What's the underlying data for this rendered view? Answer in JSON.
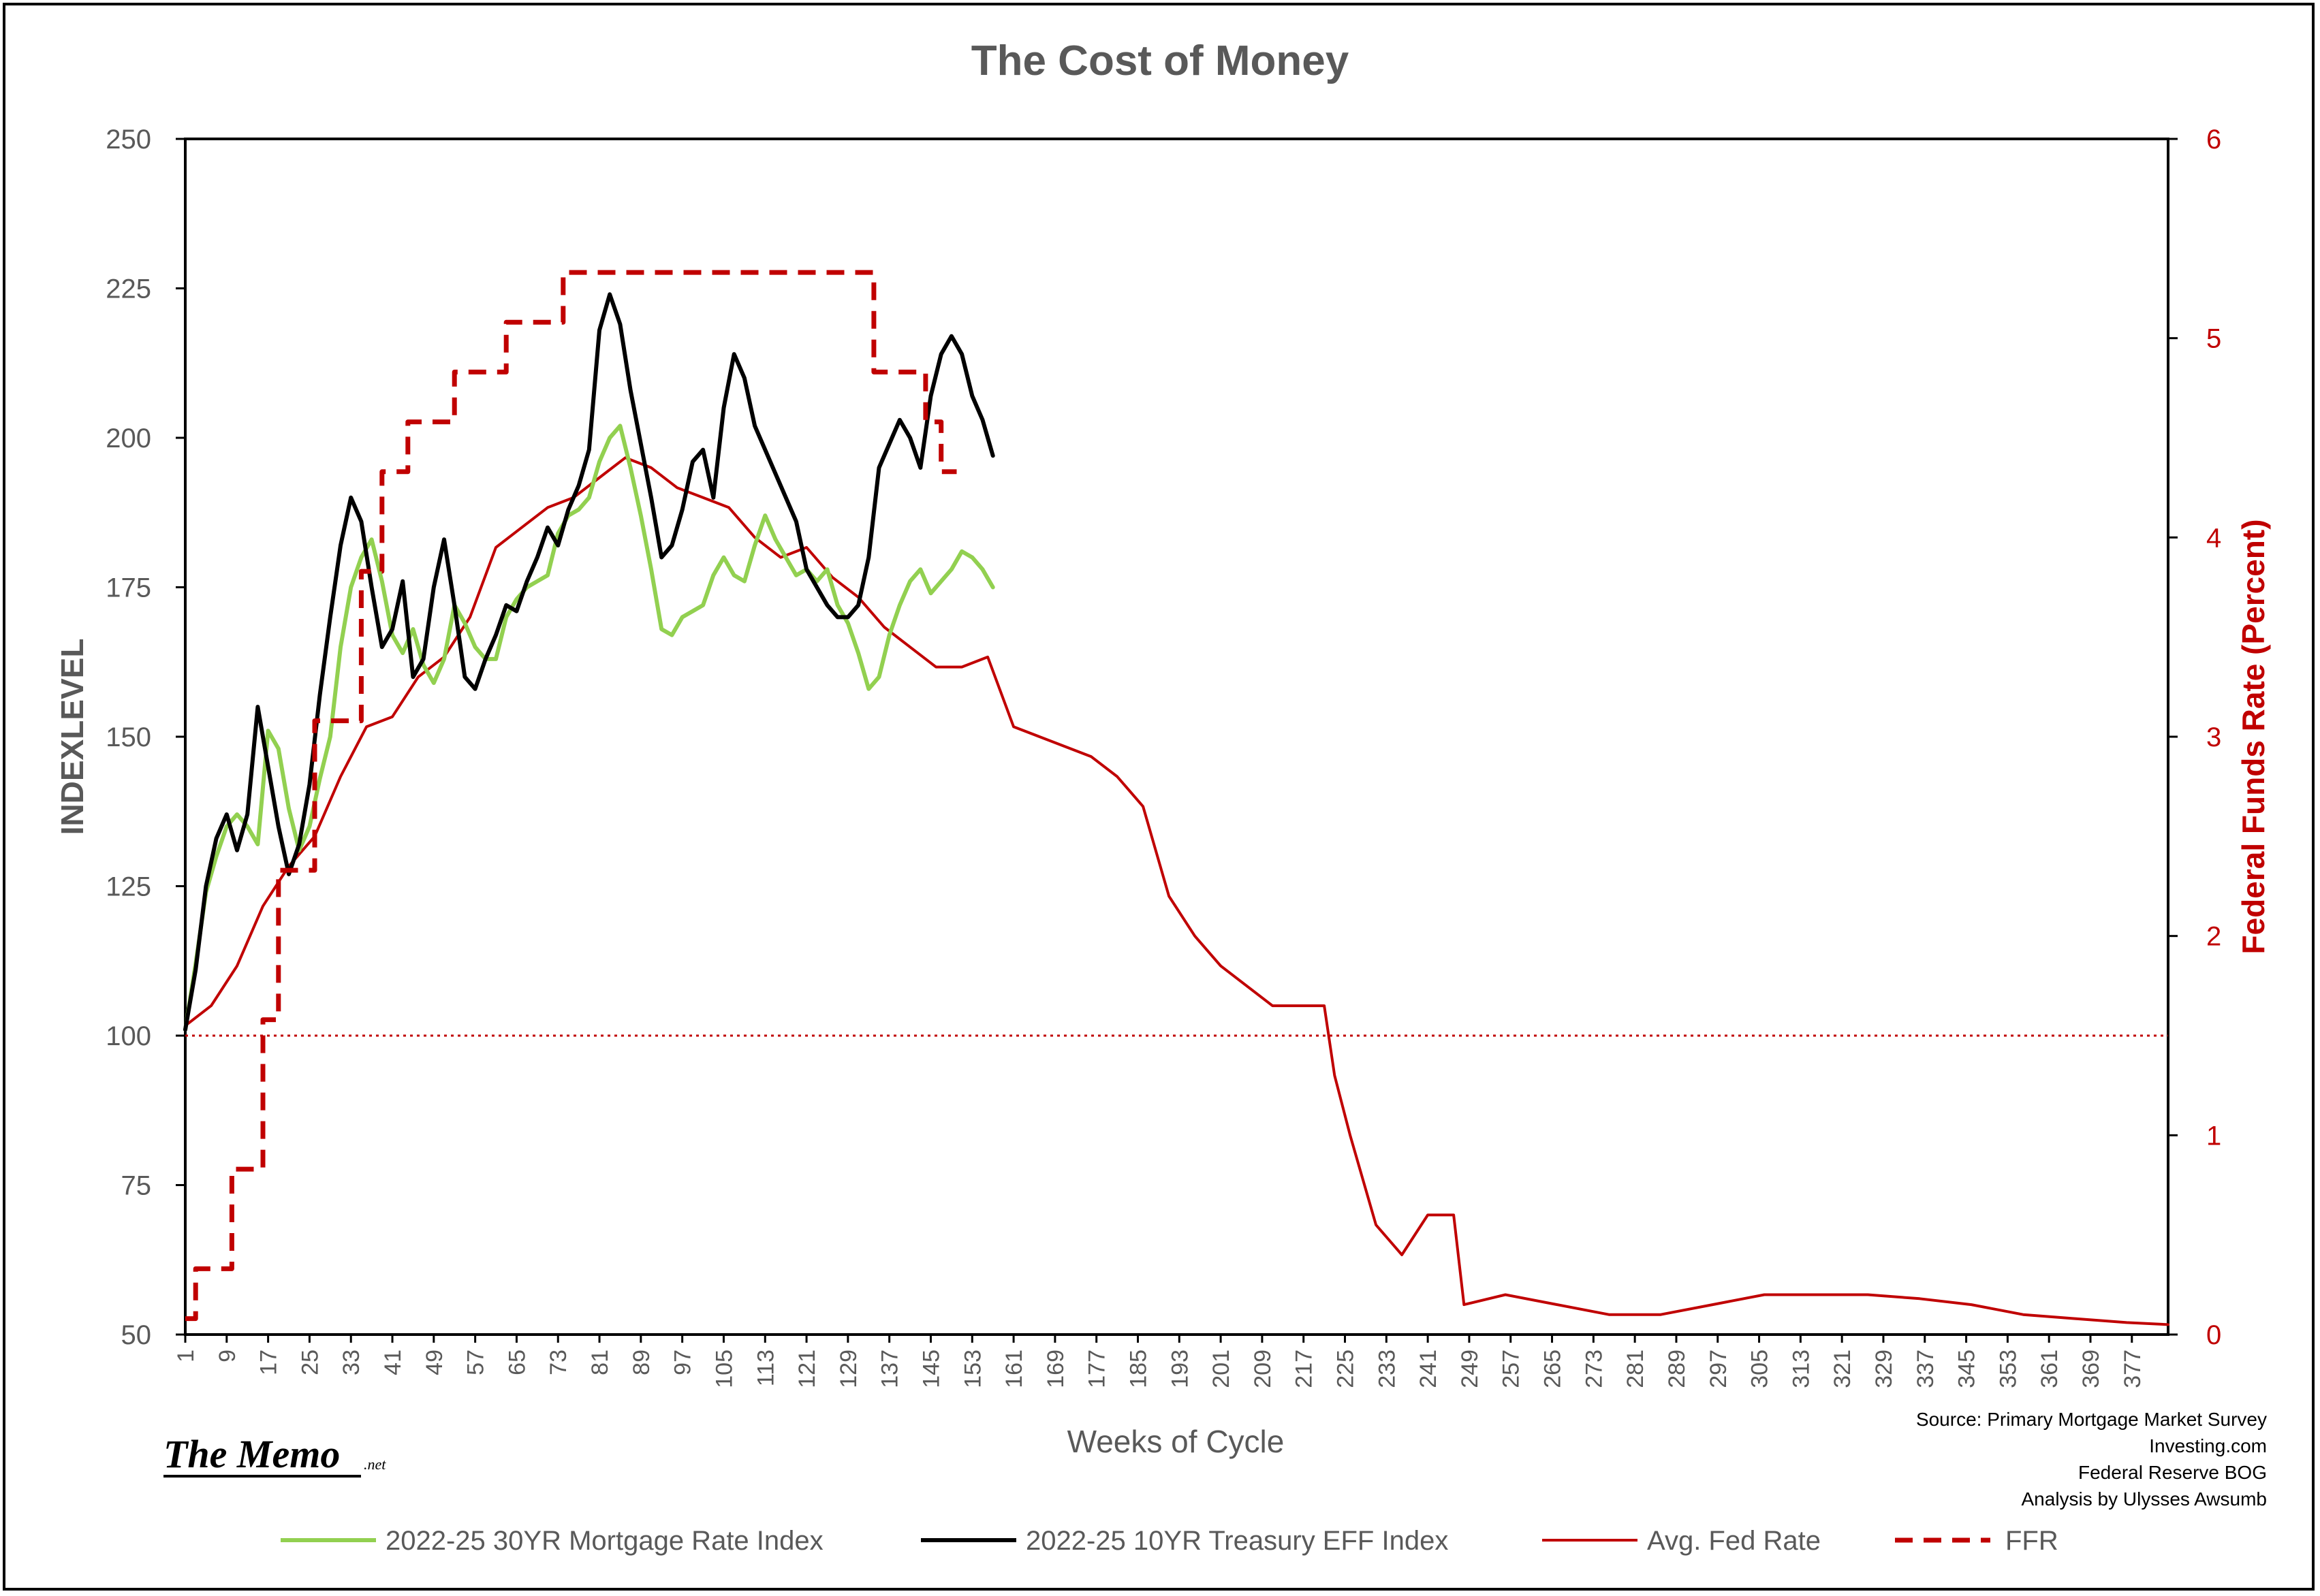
{
  "chart_data": {
    "type": "line",
    "title": "The Cost of Money",
    "xlabel": "Weeks of Cycle",
    "ylabel": "INDEXLEVEL",
    "y2label": "Federal Funds Rate (Percent)",
    "ylim": [
      50,
      250
    ],
    "y2lim": [
      0,
      6
    ],
    "xlim": [
      1,
      384
    ],
    "yticks": [
      "50",
      "75",
      "100",
      "125",
      "150",
      "175",
      "200",
      "225",
      "250"
    ],
    "y2ticks": [
      "0",
      "1",
      "2",
      "3",
      "4",
      "5",
      "6"
    ],
    "xticks": [
      "1",
      "9",
      "17",
      "25",
      "33",
      "41",
      "49",
      "57",
      "65",
      "73",
      "81",
      "89",
      "97",
      "105",
      "113",
      "121",
      "129",
      "137",
      "145",
      "153",
      "161",
      "169",
      "177",
      "185",
      "193",
      "201",
      "209",
      "217",
      "225",
      "233",
      "241",
      "249",
      "257",
      "265",
      "273",
      "281",
      "289",
      "297",
      "305",
      "313",
      "321",
      "329",
      "337",
      "345",
      "353",
      "361",
      "369",
      "377"
    ],
    "reference_line": {
      "axis": "left",
      "value": 100
    },
    "series": [
      {
        "name": "2022-25 30YR Mortgage Rate Index",
        "axis": "left",
        "color": "#92d050",
        "x": [
          1,
          3,
          5,
          7,
          9,
          11,
          13,
          15,
          17,
          19,
          21,
          23,
          25,
          27,
          29,
          31,
          33,
          35,
          37,
          39,
          41,
          43,
          45,
          47,
          49,
          51,
          53,
          55,
          57,
          59,
          61,
          63,
          65,
          67,
          69,
          71,
          73,
          75,
          77,
          79,
          81,
          83,
          85,
          87,
          89,
          91,
          93,
          95,
          97,
          99,
          101,
          103,
          105,
          107,
          109,
          111,
          113,
          115,
          117,
          119,
          121,
          123,
          125,
          127,
          129,
          131,
          133,
          135,
          137,
          139,
          141,
          143,
          145,
          147,
          149,
          151,
          153,
          155,
          157
        ],
        "y": [
          101,
          112,
          124,
          130,
          135,
          137,
          135,
          132,
          151,
          148,
          138,
          131,
          135,
          143,
          150,
          165,
          175,
          180,
          183,
          176,
          167,
          164,
          168,
          162,
          159,
          163,
          172,
          169,
          165,
          163,
          163,
          170,
          173,
          175,
          176,
          177,
          184,
          187,
          188,
          190,
          196,
          200,
          202,
          195,
          187,
          178,
          168,
          167,
          170,
          171,
          172,
          177,
          180,
          177,
          176,
          182,
          187,
          183,
          180,
          177,
          178,
          176,
          178,
          172,
          169,
          164,
          158,
          160,
          167,
          172,
          176,
          178,
          174,
          176,
          178,
          181,
          180,
          178,
          175
        ]
      },
      {
        "name": "2022-25 10YR Treasury EFF Index",
        "axis": "left",
        "color": "#000000",
        "x": [
          1,
          3,
          5,
          7,
          9,
          11,
          13,
          15,
          17,
          19,
          21,
          23,
          25,
          27,
          29,
          31,
          33,
          35,
          37,
          39,
          41,
          43,
          45,
          47,
          49,
          51,
          53,
          55,
          57,
          59,
          61,
          63,
          65,
          67,
          69,
          71,
          73,
          75,
          77,
          79,
          81,
          83,
          85,
          87,
          89,
          91,
          93,
          95,
          97,
          99,
          101,
          103,
          105,
          107,
          109,
          111,
          113,
          115,
          117,
          119,
          121,
          123,
          125,
          127,
          129,
          131,
          133,
          135,
          137,
          139,
          141,
          143,
          145,
          147,
          149,
          151,
          153,
          155,
          157
        ],
        "y": [
          101,
          111,
          125,
          133,
          137,
          131,
          137,
          155,
          145,
          135,
          127,
          132,
          142,
          157,
          170,
          182,
          190,
          186,
          175,
          165,
          168,
          176,
          160,
          163,
          175,
          183,
          172,
          160,
          158,
          163,
          167,
          172,
          171,
          176,
          180,
          185,
          182,
          188,
          192,
          198,
          218,
          224,
          219,
          208,
          199,
          190,
          180,
          182,
          188,
          196,
          198,
          190,
          205,
          214,
          210,
          202,
          198,
          194,
          190,
          186,
          178,
          175,
          172,
          170,
          170,
          172,
          180,
          195,
          199,
          203,
          200,
          195,
          207,
          214,
          217,
          214,
          207,
          203,
          197
        ]
      },
      {
        "name": "Avg. Fed Rate",
        "axis": "right",
        "color": "#c00000",
        "x": [
          1,
          6,
          11,
          16,
          21,
          26,
          31,
          36,
          41,
          46,
          51,
          56,
          61,
          66,
          71,
          76,
          81,
          86,
          91,
          96,
          101,
          106,
          111,
          116,
          121,
          126,
          131,
          136,
          141,
          146,
          151,
          156,
          161,
          166,
          171,
          176,
          181,
          186,
          191,
          196,
          201,
          206,
          211,
          216,
          221,
          223,
          226,
          231,
          236,
          241,
          246,
          248,
          256,
          266,
          276,
          286,
          296,
          306,
          316,
          326,
          336,
          346,
          356,
          366,
          376,
          384
        ],
        "y": [
          1.55,
          1.65,
          1.85,
          2.15,
          2.35,
          2.5,
          2.8,
          3.05,
          3.1,
          3.3,
          3.4,
          3.6,
          3.95,
          4.05,
          4.15,
          4.2,
          4.3,
          4.4,
          4.35,
          4.25,
          4.2,
          4.15,
          4.0,
          3.9,
          3.95,
          3.8,
          3.7,
          3.55,
          3.45,
          3.35,
          3.35,
          3.4,
          3.05,
          3.0,
          2.95,
          2.9,
          2.8,
          2.65,
          2.2,
          2.0,
          1.85,
          1.75,
          1.65,
          1.65,
          1.65,
          1.3,
          1.0,
          0.55,
          0.4,
          0.6,
          0.6,
          0.15,
          0.2,
          0.15,
          0.1,
          0.1,
          0.15,
          0.2,
          0.2,
          0.2,
          0.18,
          0.15,
          0.1,
          0.08,
          0.06,
          0.05
        ]
      },
      {
        "name": "FFR",
        "axis": "right",
        "color": "#c00000",
        "dash": true,
        "x": [
          1,
          3,
          3,
          7,
          7,
          10,
          10,
          13,
          13,
          16,
          16,
          19,
          19,
          22,
          22,
          26,
          26,
          31,
          31,
          35,
          35,
          39,
          39,
          44,
          44,
          49,
          49,
          53,
          53,
          58,
          58,
          63,
          63,
          70,
          70,
          74,
          74,
          134,
          134,
          140,
          140,
          144,
          144,
          147,
          147,
          150
        ],
        "y": [
          0.08,
          0.08,
          0.33,
          0.33,
          0.33,
          0.33,
          0.83,
          0.83,
          0.83,
          0.83,
          1.58,
          1.58,
          2.33,
          2.33,
          2.33,
          2.33,
          3.08,
          3.08,
          3.08,
          3.08,
          3.83,
          3.83,
          4.33,
          4.33,
          4.58,
          4.58,
          4.58,
          4.58,
          4.83,
          4.83,
          4.83,
          4.83,
          5.08,
          5.08,
          5.08,
          5.08,
          5.33,
          5.33,
          4.83,
          4.83,
          4.83,
          4.83,
          4.58,
          4.58,
          4.33,
          4.33
        ]
      }
    ]
  },
  "source_lines": [
    "Source: Primary Mortgage Market Survey",
    "Investing.com",
    "Federal Reserve BOG",
    "Analysis by Ulysses Awsumb"
  ],
  "brand": {
    "name": "The Memo",
    "suffix": ".net"
  }
}
